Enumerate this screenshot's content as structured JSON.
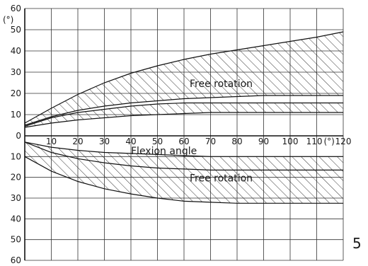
{
  "chart_data": {
    "type": "area",
    "xlabel": "Flexion angle",
    "x_unit": "(°)",
    "y_unit": "(°)",
    "xlim": [
      0,
      120
    ],
    "ylim": [
      -60,
      60
    ],
    "x_ticks": [
      10,
      20,
      30,
      40,
      50,
      60,
      70,
      80,
      90,
      100,
      110,
      120
    ],
    "y_ticks_upper": [
      60,
      50,
      40,
      30,
      20,
      10,
      0
    ],
    "y_ticks_lower": [
      10,
      20,
      30,
      40,
      50,
      60
    ],
    "grid": true,
    "bands": [
      {
        "annotation": "Free rotation",
        "upper": [
          [
            0,
            6
          ],
          [
            10,
            13
          ],
          [
            20,
            19.5
          ],
          [
            30,
            25
          ],
          [
            40,
            29.5
          ],
          [
            50,
            33
          ],
          [
            60,
            36
          ],
          [
            70,
            38.5
          ],
          [
            80,
            40.5
          ],
          [
            90,
            42.5
          ],
          [
            100,
            44.5
          ],
          [
            110,
            46.5
          ],
          [
            120,
            49
          ]
        ],
        "lower": [
          [
            0,
            5
          ],
          [
            10,
            9
          ],
          [
            20,
            12
          ],
          [
            30,
            14
          ],
          [
            40,
            15.5
          ],
          [
            50,
            16.5
          ],
          [
            60,
            17.5
          ],
          [
            70,
            18
          ],
          [
            80,
            18.5
          ],
          [
            90,
            19
          ],
          [
            100,
            19
          ],
          [
            110,
            19
          ],
          [
            120,
            19
          ]
        ]
      },
      {
        "annotation": "",
        "upper": [
          [
            0,
            4.5
          ],
          [
            10,
            8.5
          ],
          [
            20,
            11
          ],
          [
            30,
            12.5
          ],
          [
            40,
            14
          ],
          [
            50,
            15
          ],
          [
            60,
            15.5
          ],
          [
            70,
            15.5
          ],
          [
            80,
            15.5
          ],
          [
            90,
            15.5
          ],
          [
            100,
            15.5
          ],
          [
            110,
            15.5
          ],
          [
            120,
            15.5
          ]
        ],
        "lower": [
          [
            0,
            4
          ],
          [
            10,
            6
          ],
          [
            20,
            7.5
          ],
          [
            30,
            8.5
          ],
          [
            40,
            9.5
          ],
          [
            50,
            10
          ],
          [
            60,
            10.5
          ],
          [
            70,
            11
          ],
          [
            80,
            11
          ],
          [
            90,
            11
          ],
          [
            100,
            11
          ],
          [
            110,
            11
          ],
          [
            120,
            11
          ]
        ]
      },
      {
        "annotation": "Free rotation",
        "upper": [
          [
            0,
            -3
          ],
          [
            10,
            -5.5
          ],
          [
            20,
            -7
          ],
          [
            30,
            -8
          ],
          [
            40,
            -8.5
          ],
          [
            50,
            -9
          ],
          [
            60,
            -9.5
          ],
          [
            70,
            -10
          ],
          [
            80,
            -10
          ],
          [
            90,
            -10
          ],
          [
            100,
            -10
          ],
          [
            110,
            -10
          ],
          [
            120,
            -10
          ]
        ],
        "lower": [
          [
            0,
            -10
          ],
          [
            10,
            -17
          ],
          [
            20,
            -22
          ],
          [
            30,
            -25.5
          ],
          [
            40,
            -28
          ],
          [
            50,
            -30
          ],
          [
            60,
            -31.5
          ],
          [
            70,
            -32
          ],
          [
            80,
            -32.5
          ],
          [
            90,
            -32.5
          ],
          [
            100,
            -32.5
          ],
          [
            110,
            -32.5
          ],
          [
            120,
            -32.5
          ]
        ]
      }
    ],
    "inner_curve": [
      [
        0,
        -3
      ],
      [
        10,
        -8
      ],
      [
        20,
        -11
      ],
      [
        30,
        -13
      ],
      [
        40,
        -14.5
      ],
      [
        50,
        -15.5
      ],
      [
        60,
        -16
      ],
      [
        70,
        -16.5
      ],
      [
        80,
        -16.5
      ],
      [
        90,
        -16.5
      ],
      [
        100,
        -16.5
      ],
      [
        110,
        -16.5
      ],
      [
        120,
        -16.5
      ]
    ],
    "annotation_positions": [
      [
        60,
        23
      ],
      [
        60,
        -22
      ]
    ]
  },
  "figure_number": "5"
}
